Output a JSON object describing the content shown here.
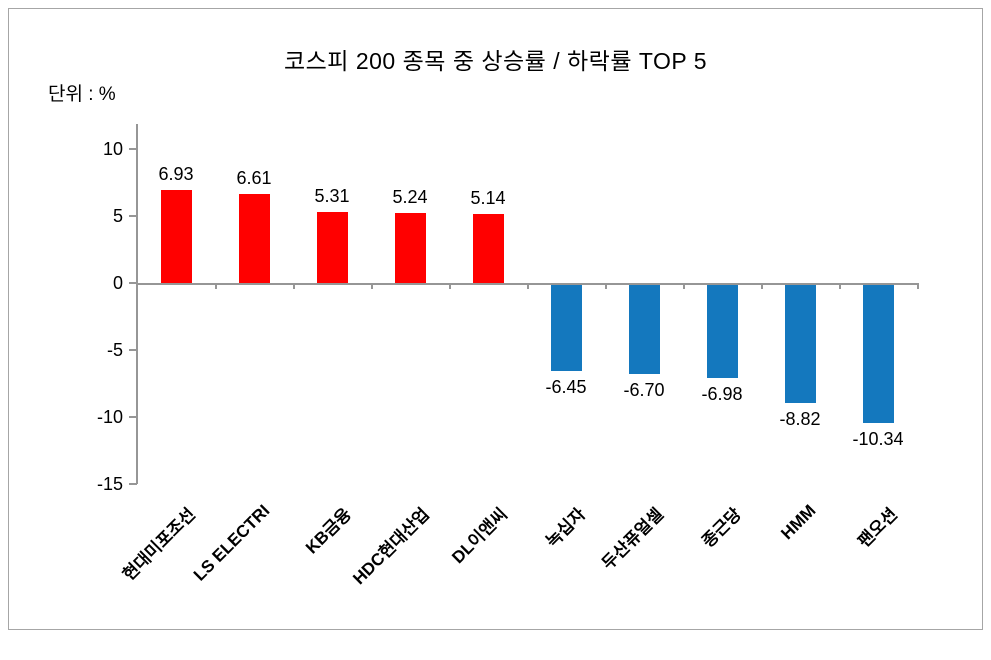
{
  "title": "코스피 200 종목 중  상승률 / 하락률 TOP 5",
  "unit_label": "단위 : %",
  "colors": {
    "positive_bar": "#FF0000",
    "negative_bar": "#1478BE",
    "axis_line": "#969696",
    "frame_border": "#A6A6A6",
    "text": "#000000",
    "background": "#FFFFFF"
  },
  "chart_data": {
    "type": "bar",
    "title": "코스피 200 종목 중  상승률 / 하락률 TOP 5",
    "unit": "단위 : %",
    "categories": [
      "현대미포조선",
      "LS ELECTRI",
      "KB금융",
      "HDC현대산업",
      "DL이앤씨",
      "녹십자",
      "두산퓨얼셀",
      "종근당",
      "HMM",
      "팬오션"
    ],
    "values": [
      6.93,
      6.61,
      5.31,
      5.24,
      5.14,
      -6.45,
      -6.7,
      -6.98,
      -8.82,
      -10.34
    ],
    "value_labels": [
      "6.93",
      "6.61",
      "5.31",
      "5.24",
      "5.14",
      "-6.45",
      "-6.70",
      "-6.98",
      "-8.82",
      "-10.34"
    ],
    "y_ticks": [
      10,
      5,
      0,
      -5,
      -10,
      -15
    ],
    "ylim": [
      -15,
      12
    ],
    "xlabel": "",
    "ylabel": "%",
    "grid": false,
    "legend": false,
    "bar_label_position": "outside-end",
    "category_label_rotation_deg": 45
  }
}
